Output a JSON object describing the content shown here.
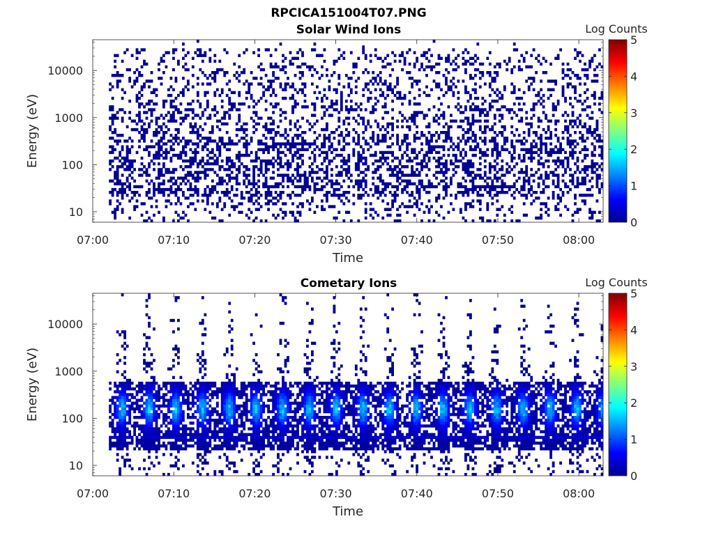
{
  "figure": {
    "title": "RPCICA151004T07.PNG"
  },
  "chart_data": [
    {
      "type": "heatmap",
      "title": "Solar Wind Ions",
      "xlabel": "Time",
      "ylabel": "Energy (eV)",
      "x_ticks": [
        "07:00",
        "07:10",
        "07:20",
        "07:30",
        "07:40",
        "07:50",
        "08:00"
      ],
      "xlim": [
        "07:00",
        "08:03"
      ],
      "y_scale": "log",
      "y_ticks": [
        "10",
        "100",
        "1000",
        "10000"
      ],
      "ylim": [
        6,
        45000
      ],
      "colorbar": {
        "label": "Log Counts",
        "ticks": [
          "0",
          "1",
          "2",
          "3",
          "4",
          "5"
        ],
        "range": [
          0,
          5
        ],
        "colormap": "jet"
      },
      "data_start": "07:02",
      "data_end": "08:03",
      "pattern": "sparse",
      "dominant_log_counts": 0,
      "core_energy_range": [
        20,
        400
      ]
    },
    {
      "type": "heatmap",
      "title": "Cometary Ions",
      "xlabel": "Time",
      "ylabel": "Energy (eV)",
      "x_ticks": [
        "07:00",
        "07:10",
        "07:20",
        "07:30",
        "07:40",
        "07:50",
        "08:00"
      ],
      "xlim": [
        "07:00",
        "08:03"
      ],
      "y_scale": "log",
      "y_ticks": [
        "10",
        "100",
        "1000",
        "10000"
      ],
      "ylim": [
        6,
        45000
      ],
      "colorbar": {
        "label": "Log Counts",
        "ticks": [
          "0",
          "1",
          "2",
          "3",
          "4",
          "5"
        ],
        "range": [
          0,
          5
        ],
        "colormap": "jet"
      },
      "data_start": "07:02",
      "data_end": "08:03",
      "pattern": "periodic-bursts",
      "burst_period_minutes": 3.3,
      "peak_log_counts": 1.8,
      "core_energy_range": [
        20,
        600
      ],
      "baseline_line_energy": 40
    }
  ]
}
